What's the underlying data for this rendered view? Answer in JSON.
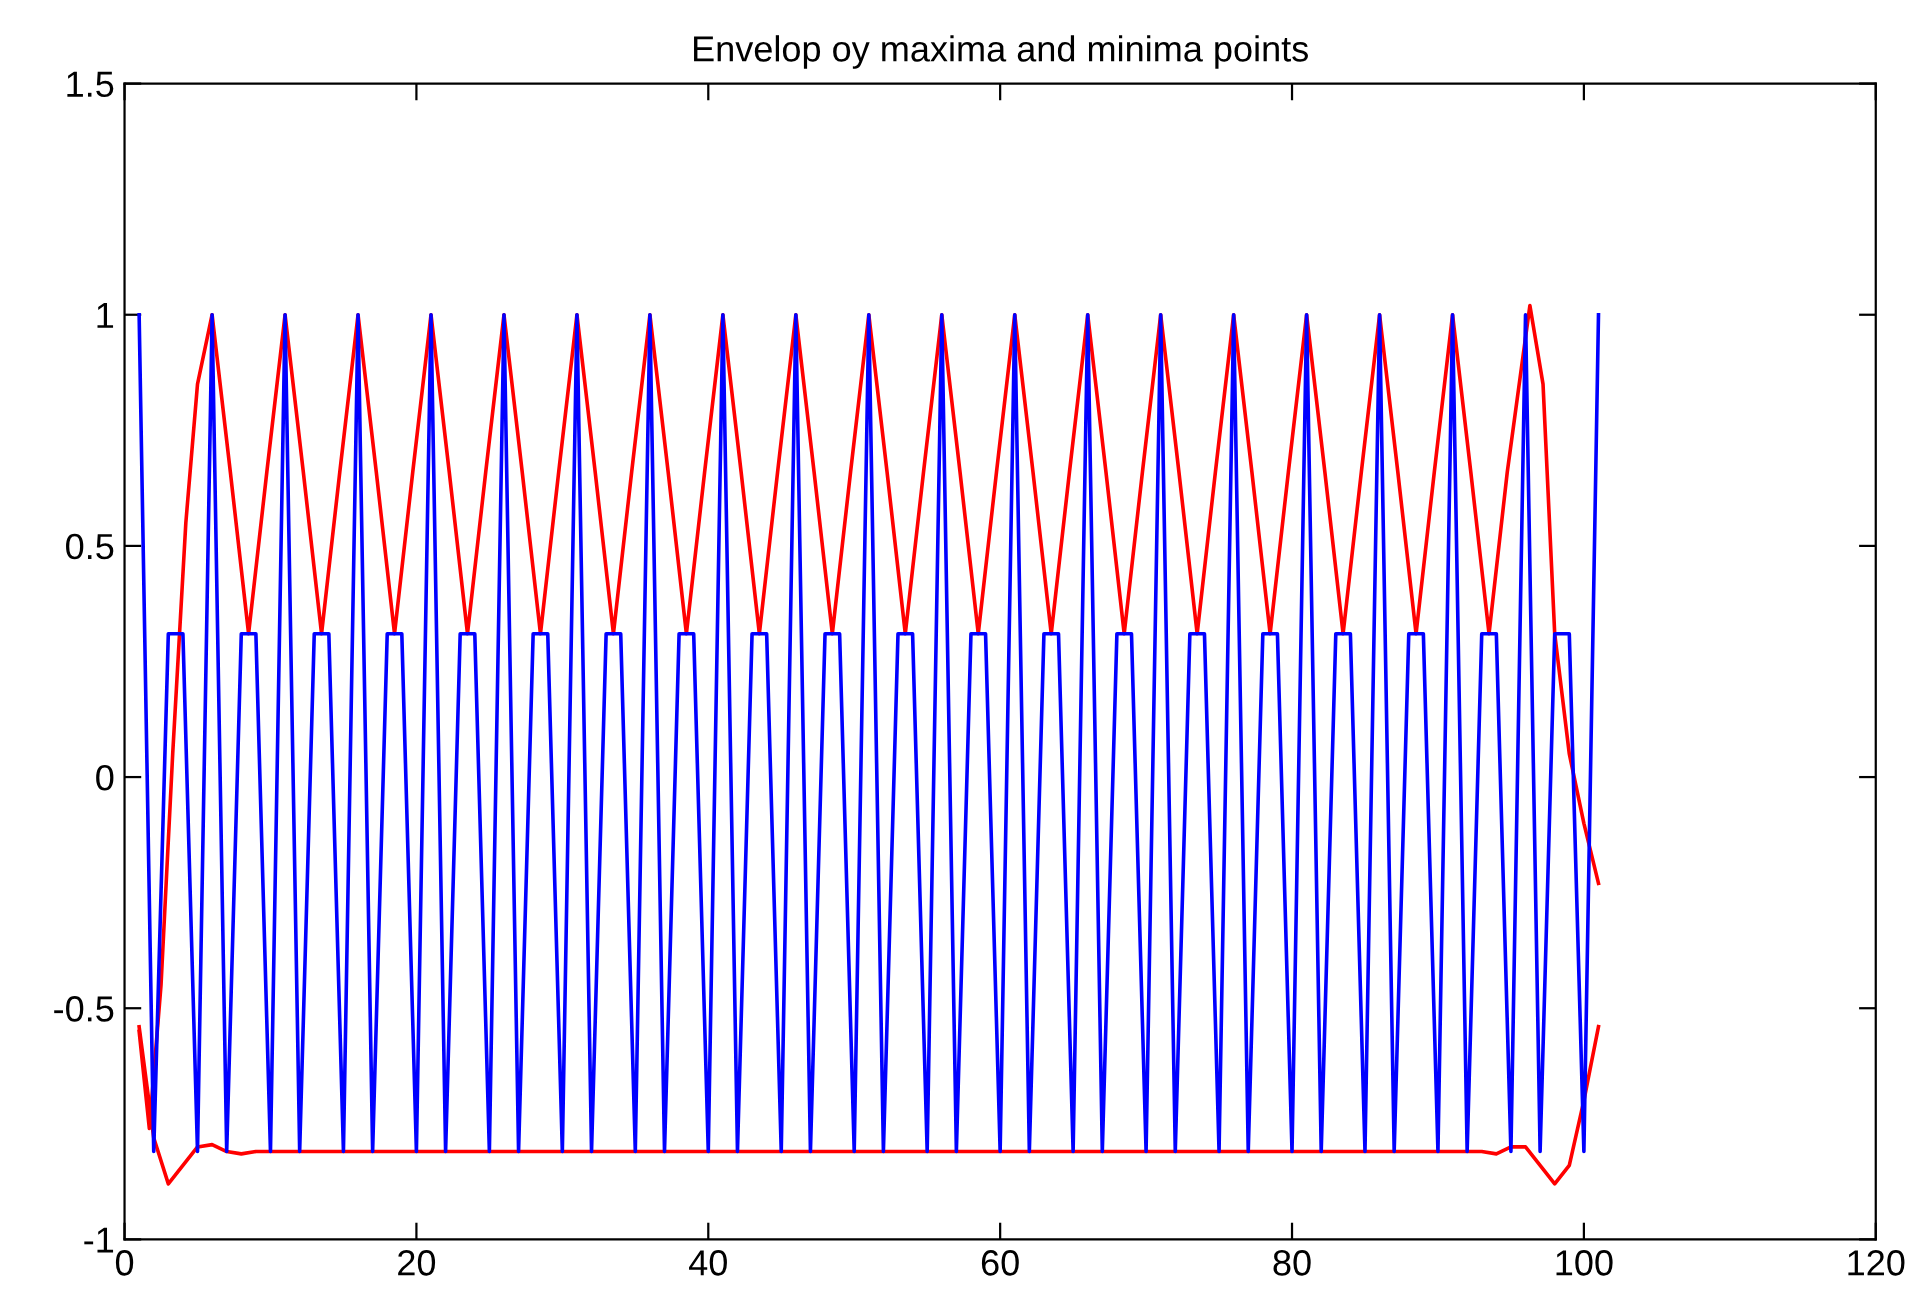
{
  "chart_data": {
    "type": "line",
    "title": "Envelop oy maxima and minima points",
    "xlim": [
      0,
      120
    ],
    "ylim": [
      -1,
      1.5
    ],
    "xticks": [
      0,
      20,
      40,
      60,
      80,
      100,
      120
    ],
    "yticks": [
      -1,
      -0.5,
      0,
      0.5,
      1,
      1.5
    ],
    "grid": false,
    "marker": "none",
    "line_style": "solid",
    "series": [
      {
        "color": "#0000ff",
        "x": [
          1,
          2,
          3,
          4,
          5,
          6,
          7,
          8,
          9,
          10,
          11,
          12,
          13,
          14,
          15,
          16,
          17,
          18,
          19,
          20,
          21,
          22,
          23,
          24,
          25,
          26,
          27,
          28,
          29,
          30,
          31,
          32,
          33,
          34,
          35,
          36,
          37,
          38,
          39,
          40,
          41,
          42,
          43,
          44,
          45,
          46,
          47,
          48,
          49,
          50,
          51,
          52,
          53,
          54,
          55,
          56,
          57,
          58,
          59,
          60,
          61,
          62,
          63,
          64,
          65,
          66,
          67,
          68,
          69,
          70,
          71,
          72,
          73,
          74,
          75,
          76,
          77,
          78,
          79,
          80,
          81,
          82,
          83,
          84,
          85,
          86,
          87,
          88,
          89,
          90,
          91,
          92,
          93,
          94,
          95,
          96,
          97,
          98,
          99,
          100,
          101
        ],
        "values": [
          1,
          -0.81,
          0.31,
          0.31,
          -0.81,
          1,
          -0.81,
          0.31,
          0.31,
          -0.81,
          1,
          -0.81,
          0.31,
          0.31,
          -0.81,
          1,
          -0.81,
          0.31,
          0.31,
          -0.81,
          1,
          -0.81,
          0.31,
          0.31,
          -0.81,
          1,
          -0.81,
          0.31,
          0.31,
          -0.81,
          1,
          -0.81,
          0.31,
          0.31,
          -0.81,
          1,
          -0.81,
          0.31,
          0.31,
          -0.81,
          1,
          -0.81,
          0.31,
          0.31,
          -0.81,
          1,
          -0.81,
          0.31,
          0.31,
          -0.81,
          1,
          -0.81,
          0.31,
          0.31,
          -0.81,
          1,
          -0.81,
          0.31,
          0.31,
          -0.81,
          1,
          -0.81,
          0.31,
          0.31,
          -0.81,
          1,
          -0.81,
          0.31,
          0.31,
          -0.81,
          1,
          -0.81,
          0.31,
          0.31,
          -0.81,
          1,
          -0.81,
          0.31,
          0.31,
          -0.81,
          1,
          -0.81,
          0.31,
          0.31,
          -0.81,
          1,
          -0.81,
          0.31,
          0.31,
          -0.81,
          1,
          -0.81,
          0.31,
          0.31,
          -0.81,
          1,
          -0.81,
          0.31,
          0.31,
          -0.81,
          1
        ]
      },
      {
        "color": "#ff0000",
        "x": [
          1,
          1.7,
          2.5,
          3.3,
          4.2,
          5,
          6,
          7.25,
          8.5,
          9.75,
          11,
          12.25,
          13.5,
          14.75,
          16,
          17.25,
          18.5,
          19.75,
          21,
          22.25,
          23.5,
          24.75,
          26,
          27.25,
          28.5,
          29.75,
          31,
          32.25,
          33.5,
          34.75,
          36,
          37.25,
          38.5,
          39.75,
          41,
          42.25,
          43.5,
          44.75,
          46,
          47.25,
          48.5,
          49.75,
          51,
          52.25,
          53.5,
          54.75,
          56,
          57.25,
          58.5,
          59.75,
          61,
          62.25,
          63.5,
          64.75,
          66,
          67.25,
          68.5,
          69.75,
          71,
          72.25,
          73.5,
          74.75,
          76,
          77.25,
          78.5,
          79.75,
          81,
          82.25,
          83.5,
          84.75,
          86,
          87.25,
          88.5,
          89.75,
          91,
          92.25,
          93.5,
          94.75,
          96.3,
          97.2,
          98,
          99,
          100,
          101
        ],
        "values": [
          -0.55,
          -0.76,
          -0.45,
          0.05,
          0.55,
          0.85,
          1,
          0.66,
          0.31,
          0.66,
          1,
          0.66,
          0.31,
          0.66,
          1,
          0.66,
          0.31,
          0.66,
          1,
          0.66,
          0.31,
          0.66,
          1,
          0.66,
          0.31,
          0.66,
          1,
          0.66,
          0.31,
          0.66,
          1,
          0.66,
          0.31,
          0.66,
          1,
          0.66,
          0.31,
          0.66,
          1,
          0.66,
          0.31,
          0.66,
          1,
          0.66,
          0.31,
          0.66,
          1,
          0.66,
          0.31,
          0.66,
          1,
          0.66,
          0.31,
          0.66,
          1,
          0.66,
          0.31,
          0.66,
          1,
          0.66,
          0.31,
          0.66,
          1,
          0.66,
          0.31,
          0.66,
          1,
          0.66,
          0.31,
          0.66,
          1,
          0.66,
          0.31,
          0.66,
          1,
          0.66,
          0.31,
          0.66,
          1.02,
          0.85,
          0.31,
          0.05,
          -0.1,
          -0.23
        ]
      },
      {
        "color": "#ff0000",
        "x": [
          1,
          2,
          3,
          4,
          5,
          6,
          7,
          8,
          9,
          93,
          94,
          95,
          96,
          97,
          98,
          99,
          100,
          101
        ],
        "values": [
          -0.54,
          -0.78,
          -0.88,
          -0.84,
          -0.8,
          -0.795,
          -0.81,
          -0.815,
          -0.81,
          -0.81,
          -0.815,
          -0.8,
          -0.8,
          -0.84,
          -0.88,
          -0.84,
          -0.7,
          -0.54
        ]
      }
    ]
  }
}
